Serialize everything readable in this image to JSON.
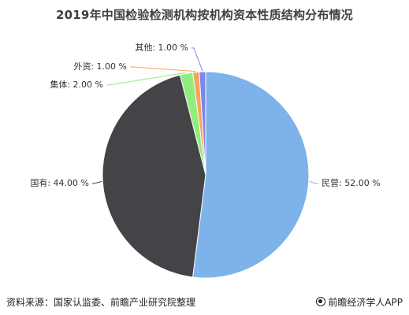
{
  "chart_data": {
    "type": "pie",
    "title": "2019年中国检验检测机构按机构资本性质结构分布情况",
    "slices": [
      {
        "label": "民营",
        "value": 52.0,
        "display": "民营: 52.00 %",
        "color": "#7db3ea"
      },
      {
        "label": "国有",
        "value": 44.0,
        "display": "国有: 44.00 %",
        "color": "#434348"
      },
      {
        "label": "集体",
        "value": 2.0,
        "display": "集体: 2.00 %",
        "color": "#90ed7d"
      },
      {
        "label": "外资",
        "value": 1.0,
        "display": "外资: 1.00 %",
        "color": "#f7a35c"
      },
      {
        "label": "其他",
        "value": 1.0,
        "display": "其他: 1.00 %",
        "color": "#8085e9"
      }
    ],
    "start_angle_deg": 0,
    "direction": "clockwise"
  },
  "footer": {
    "source": "资料来源：国家认监委、前瞻产业研究院整理",
    "brand": "前瞻经济学人APP"
  }
}
